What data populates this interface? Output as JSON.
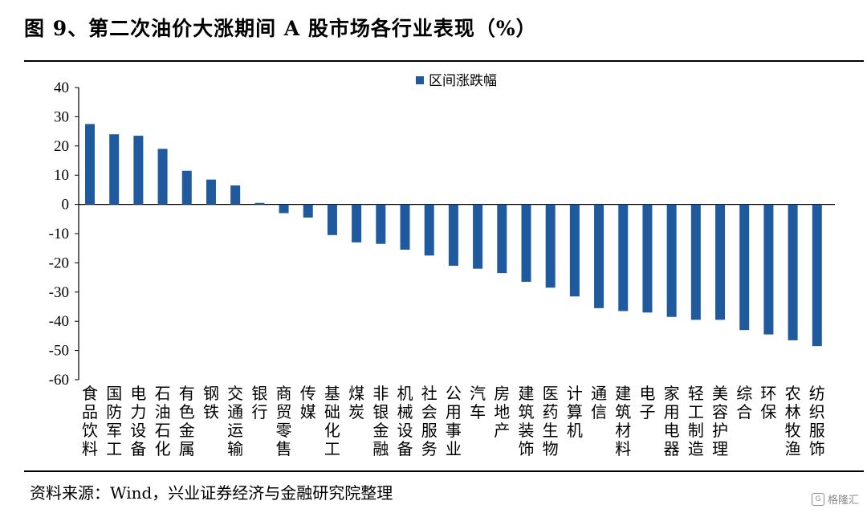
{
  "title": "图 9、第二次油价大涨期间 A 股市场各行业表现（%）",
  "source": "资料来源：Wind，兴业证券经济与金融研究院整理",
  "watermark": "格隆汇",
  "colors": {
    "bar": "#1f5a9e",
    "axis": "#000000"
  },
  "chart_data": {
    "type": "bar",
    "title": "",
    "xlabel": "",
    "ylabel": "",
    "ylim": [
      -60,
      40
    ],
    "yticks": [
      40,
      30,
      20,
      10,
      0,
      -10,
      -20,
      -30,
      -40,
      -50,
      -60
    ],
    "grid": false,
    "legend_position": "top-center",
    "categories": [
      "食品饮料",
      "国防军工",
      "电力设备",
      "石油石化",
      "有色金属",
      "钢铁",
      "交通运输",
      "银行",
      "商贸零售",
      "传媒",
      "基础化工",
      "煤炭",
      "非银金融",
      "机械设备",
      "社会服务",
      "公用事业",
      "汽车",
      "房地产",
      "建筑装饰",
      "医药生物",
      "计算机",
      "通信",
      "建筑材料",
      "电子",
      "家用电器",
      "轻工制造",
      "美容护理",
      "综合",
      "环保",
      "农林牧渔",
      "纺织服饰"
    ],
    "series": [
      {
        "name": "区间涨跌幅",
        "values": [
          27.5,
          24,
          23.5,
          19,
          11.5,
          8.5,
          6.5,
          0.5,
          -3,
          -4.5,
          -10.5,
          -13,
          -13.5,
          -15.5,
          -17.5,
          -21,
          -22,
          -23.5,
          -26.5,
          -28.5,
          -31.5,
          -35.5,
          -36.5,
          -37,
          -38.5,
          -39.5,
          -39.5,
          -43,
          -44.5,
          -46.5,
          -48.5
        ]
      }
    ]
  }
}
